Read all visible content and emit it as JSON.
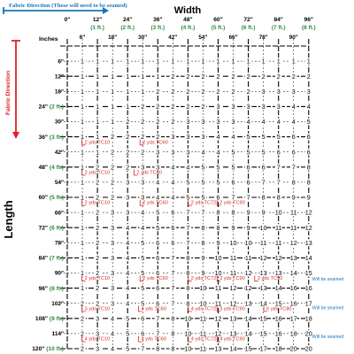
{
  "header": {
    "fabric_direction_top": "Fabric Direction (These will need to be seamed)",
    "width_title": "Width",
    "length_title": "Length",
    "fabric_direction_side": "Fabric Direction",
    "inches_label": "Inches",
    "zero_label": "0\""
  },
  "columns": [
    {
      "label": "6\"",
      "ft": ""
    },
    {
      "label": "12\"",
      "ft": "(1 ft.)"
    },
    {
      "label": "18\"",
      "ft": ""
    },
    {
      "label": "24\"",
      "ft": "(2 ft.)"
    },
    {
      "label": "30\"",
      "ft": ""
    },
    {
      "label": "36\"",
      "ft": "(3 ft.)"
    },
    {
      "label": "42\"",
      "ft": ""
    },
    {
      "label": "48\"",
      "ft": "(4 ft.)"
    },
    {
      "label": "54\"",
      "ft": ""
    },
    {
      "label": "60\"",
      "ft": "(5 ft.)"
    },
    {
      "label": "66\"",
      "ft": ""
    },
    {
      "label": "72\"",
      "ft": "(6 ft.)"
    },
    {
      "label": "78\"",
      "ft": ""
    },
    {
      "label": "84\"",
      "ft": "(7 ft.)"
    },
    {
      "label": "90\"",
      "ft": ""
    },
    {
      "label": "96\"",
      "ft": "(8 ft.)"
    }
  ],
  "rows": [
    {
      "label": "6\"",
      "ft": "",
      "values": [
        "1",
        "1",
        "1",
        "1",
        "1",
        "1",
        "1",
        "1",
        "1",
        "1",
        "1",
        "1",
        "1",
        "1",
        "1",
        "1"
      ]
    },
    {
      "label": "12\"",
      "ft": "",
      "values": [
        "1",
        "1",
        "1",
        "1",
        "1",
        "1",
        "2",
        "2",
        "2",
        "2",
        "2",
        "2",
        "2",
        "2",
        "2",
        "2"
      ]
    },
    {
      "label": "18\"",
      "ft": "",
      "values": [
        "1",
        "1",
        "1",
        "1",
        "1",
        "2",
        "2",
        "2",
        "2",
        "2",
        "2",
        "2",
        "3",
        "3",
        "3",
        "3"
      ]
    },
    {
      "label": "24\"",
      "ft": "(2 ft.)",
      "values": [
        "1",
        "1",
        "1",
        "1",
        "2",
        "2",
        "2",
        "2",
        "2",
        "3",
        "3",
        "3",
        "3",
        "3",
        "4",
        "4"
      ]
    },
    {
      "label": "30\"",
      "ft": "",
      "values": [
        "1",
        "1",
        "1",
        "2",
        "2",
        "2",
        "2",
        "3",
        "3",
        "3",
        "3",
        "4",
        "4",
        "4",
        "4",
        "5"
      ]
    },
    {
      "label": "36\"",
      "ft": "(3 ft.)",
      "values": [
        "1",
        "1",
        "2",
        "2",
        "2",
        "2",
        "3",
        "3",
        "3",
        "4",
        "4",
        "5",
        "5",
        "5",
        "6",
        "6"
      ]
    },
    {
      "label": "42\"",
      "ft": "",
      "values": [
        "1",
        "1",
        "2",
        "2",
        "2",
        "3",
        "3",
        "3",
        "4",
        "4",
        "5",
        "5",
        "5",
        "6",
        "6",
        "6"
      ]
    },
    {
      "label": "48\"",
      "ft": "(4 ft.)",
      "values": [
        "1",
        "2",
        "2",
        "2",
        "3",
        "3",
        "4",
        "4",
        "5",
        "5",
        "5",
        "6",
        "6",
        "7",
        "7",
        "8"
      ]
    },
    {
      "label": "54\"",
      "ft": "",
      "values": [
        "1",
        "2",
        "2",
        "3",
        "3",
        "4",
        "4",
        "5",
        "5",
        "5",
        "6",
        "6",
        "7",
        "7",
        "8",
        "8"
      ]
    },
    {
      "label": "60\"",
      "ft": "(5 ft.)",
      "values": [
        "1",
        "2",
        "2",
        "3",
        "3",
        "4",
        "4",
        "5",
        "5",
        "6",
        "7",
        "7",
        "8",
        "8",
        "9",
        "9"
      ]
    },
    {
      "label": "66\"",
      "ft": "",
      "values": [
        "1",
        "2",
        "3",
        "3",
        "4",
        "5",
        "6",
        "7",
        "7",
        "8",
        "8",
        "9",
        "9",
        "10",
        "11",
        "12"
      ]
    },
    {
      "label": "72\"",
      "ft": "(6 ft.)",
      "values": [
        "1",
        "2",
        "3",
        "4",
        "4",
        "5",
        "6",
        "7",
        "8",
        "8",
        "9",
        "9",
        "10",
        "11",
        "11",
        "12"
      ]
    },
    {
      "label": "78\"",
      "ft": "",
      "values": [
        "1",
        "2",
        "3",
        "4",
        "5",
        "6",
        "6",
        "7",
        "8",
        "9",
        "10",
        "10",
        "11",
        "11",
        "12",
        "13"
      ]
    },
    {
      "label": "84\"",
      "ft": "(7 ft.)",
      "values": [
        "1",
        "2",
        "3",
        "4",
        "5",
        "6",
        "7",
        "8",
        "9",
        "10",
        "11",
        "11",
        "12",
        "12",
        "13",
        "14"
      ]
    },
    {
      "label": "90\"",
      "ft": "",
      "values": [
        "1",
        "2",
        "3",
        "4",
        "5",
        "6",
        "7",
        "8",
        "9",
        "10",
        "11",
        "12",
        "13",
        "13",
        "14",
        "15"
      ]
    },
    {
      "label": "96\"",
      "ft": "(8 ft.)",
      "values": [
        "1",
        "2",
        "3",
        "4",
        "5",
        "6",
        "7",
        "8",
        "10",
        "11",
        "12",
        "12",
        "13",
        "14",
        "16",
        "16"
      ]
    },
    {
      "label": "102\"",
      "ft": "",
      "values": [
        "2",
        "2",
        "3",
        "4",
        "5",
        "6",
        "7",
        "8",
        "10",
        "11",
        "12",
        "13",
        "14",
        "15",
        "16",
        "17"
      ]
    },
    {
      "label": "108\"",
      "ft": "(9 ft.)",
      "values": [
        "2",
        "3",
        "4",
        "5",
        "6",
        "7",
        "8",
        "10",
        "11",
        "12",
        "13",
        "14",
        "15",
        "16",
        "17",
        "18"
      ]
    },
    {
      "label": "114\"",
      "ft": "",
      "values": [
        "2",
        "3",
        "4",
        "5",
        "6",
        "7",
        "8",
        "10",
        "11",
        "12",
        "13",
        "14",
        "15",
        "16",
        "18",
        "20"
      ]
    },
    {
      "label": "120\"",
      "ft": "(10 ft.)",
      "values": [
        "2",
        "3",
        "4",
        "5",
        "7",
        "8",
        "8",
        "10",
        "11",
        "13",
        "14",
        "15",
        "17",
        "18",
        "20",
        "20"
      ]
    }
  ],
  "annotations": [
    {
      "text": "2 yds TC10",
      "row": 6.45,
      "col": 1.15
    },
    {
      "text": "2 yds TC60",
      "row": 6.45,
      "col": 5.0
    },
    {
      "text": "2 yds TC10",
      "row": 8.45,
      "col": 1.15
    },
    {
      "text": "2 yds TC60",
      "row": 8.45,
      "col": 4.6
    },
    {
      "text": "2 yds TC10",
      "row": 10.45,
      "col": 1.15
    },
    {
      "text": "2 yds TC60",
      "row": 10.45,
      "col": 5.0
    },
    {
      "text": "2 yds TC72",
      "row": 10.45,
      "col": 8.2
    },
    {
      "text": "2 yds TC90",
      "row": 10.45,
      "col": 10.1
    },
    {
      "text": "2 yds TC10",
      "row": 15.45,
      "col": 1.15
    },
    {
      "text": "2 yds TC60",
      "row": 15.45,
      "col": 5.0
    },
    {
      "text": "2 yds TC72",
      "row": 15.45,
      "col": 8.2
    },
    {
      "text": "2 yds TC90",
      "row": 15.45,
      "col": 10.1
    },
    {
      "text": "2 yds TC90",
      "row": 15.45,
      "col": 12.6
    },
    {
      "text": "3 yds TC10",
      "row": 17.45,
      "col": 1.15
    },
    {
      "text": "4 yds TC60",
      "row": 17.45,
      "col": 4.9
    },
    {
      "text": "4 yds TC72",
      "row": 17.45,
      "col": 8.2
    },
    {
      "text": "3 yds TC90",
      "row": 17.45,
      "col": 10.1
    },
    {
      "text": "6 yds TC80",
      "row": 17.45,
      "col": 13.2
    },
    {
      "text": "4 yds TC10",
      "row": 19.45,
      "col": 1.15
    },
    {
      "text": "4 yds TC60",
      "row": 19.45,
      "col": 4.9
    },
    {
      "text": "4 yds TC72",
      "row": 19.45,
      "col": 8.2
    },
    {
      "text": "4 yds TC90",
      "row": 19.45,
      "col": 10.1
    }
  ],
  "side_notes": [
    {
      "text": "Will be seamed",
      "row": 15.5
    },
    {
      "text": "Will be seamed",
      "row": 17.4
    },
    {
      "text": "Will be seamed",
      "row": 19.3
    }
  ],
  "colors": {
    "fabric_blue": "#1a73b8",
    "fabric_red": "#e31e24",
    "ft_green": "#2e8b3d",
    "grid": "#000000",
    "tc_red": "#d42a20",
    "note_blue": "#1a73b8"
  }
}
